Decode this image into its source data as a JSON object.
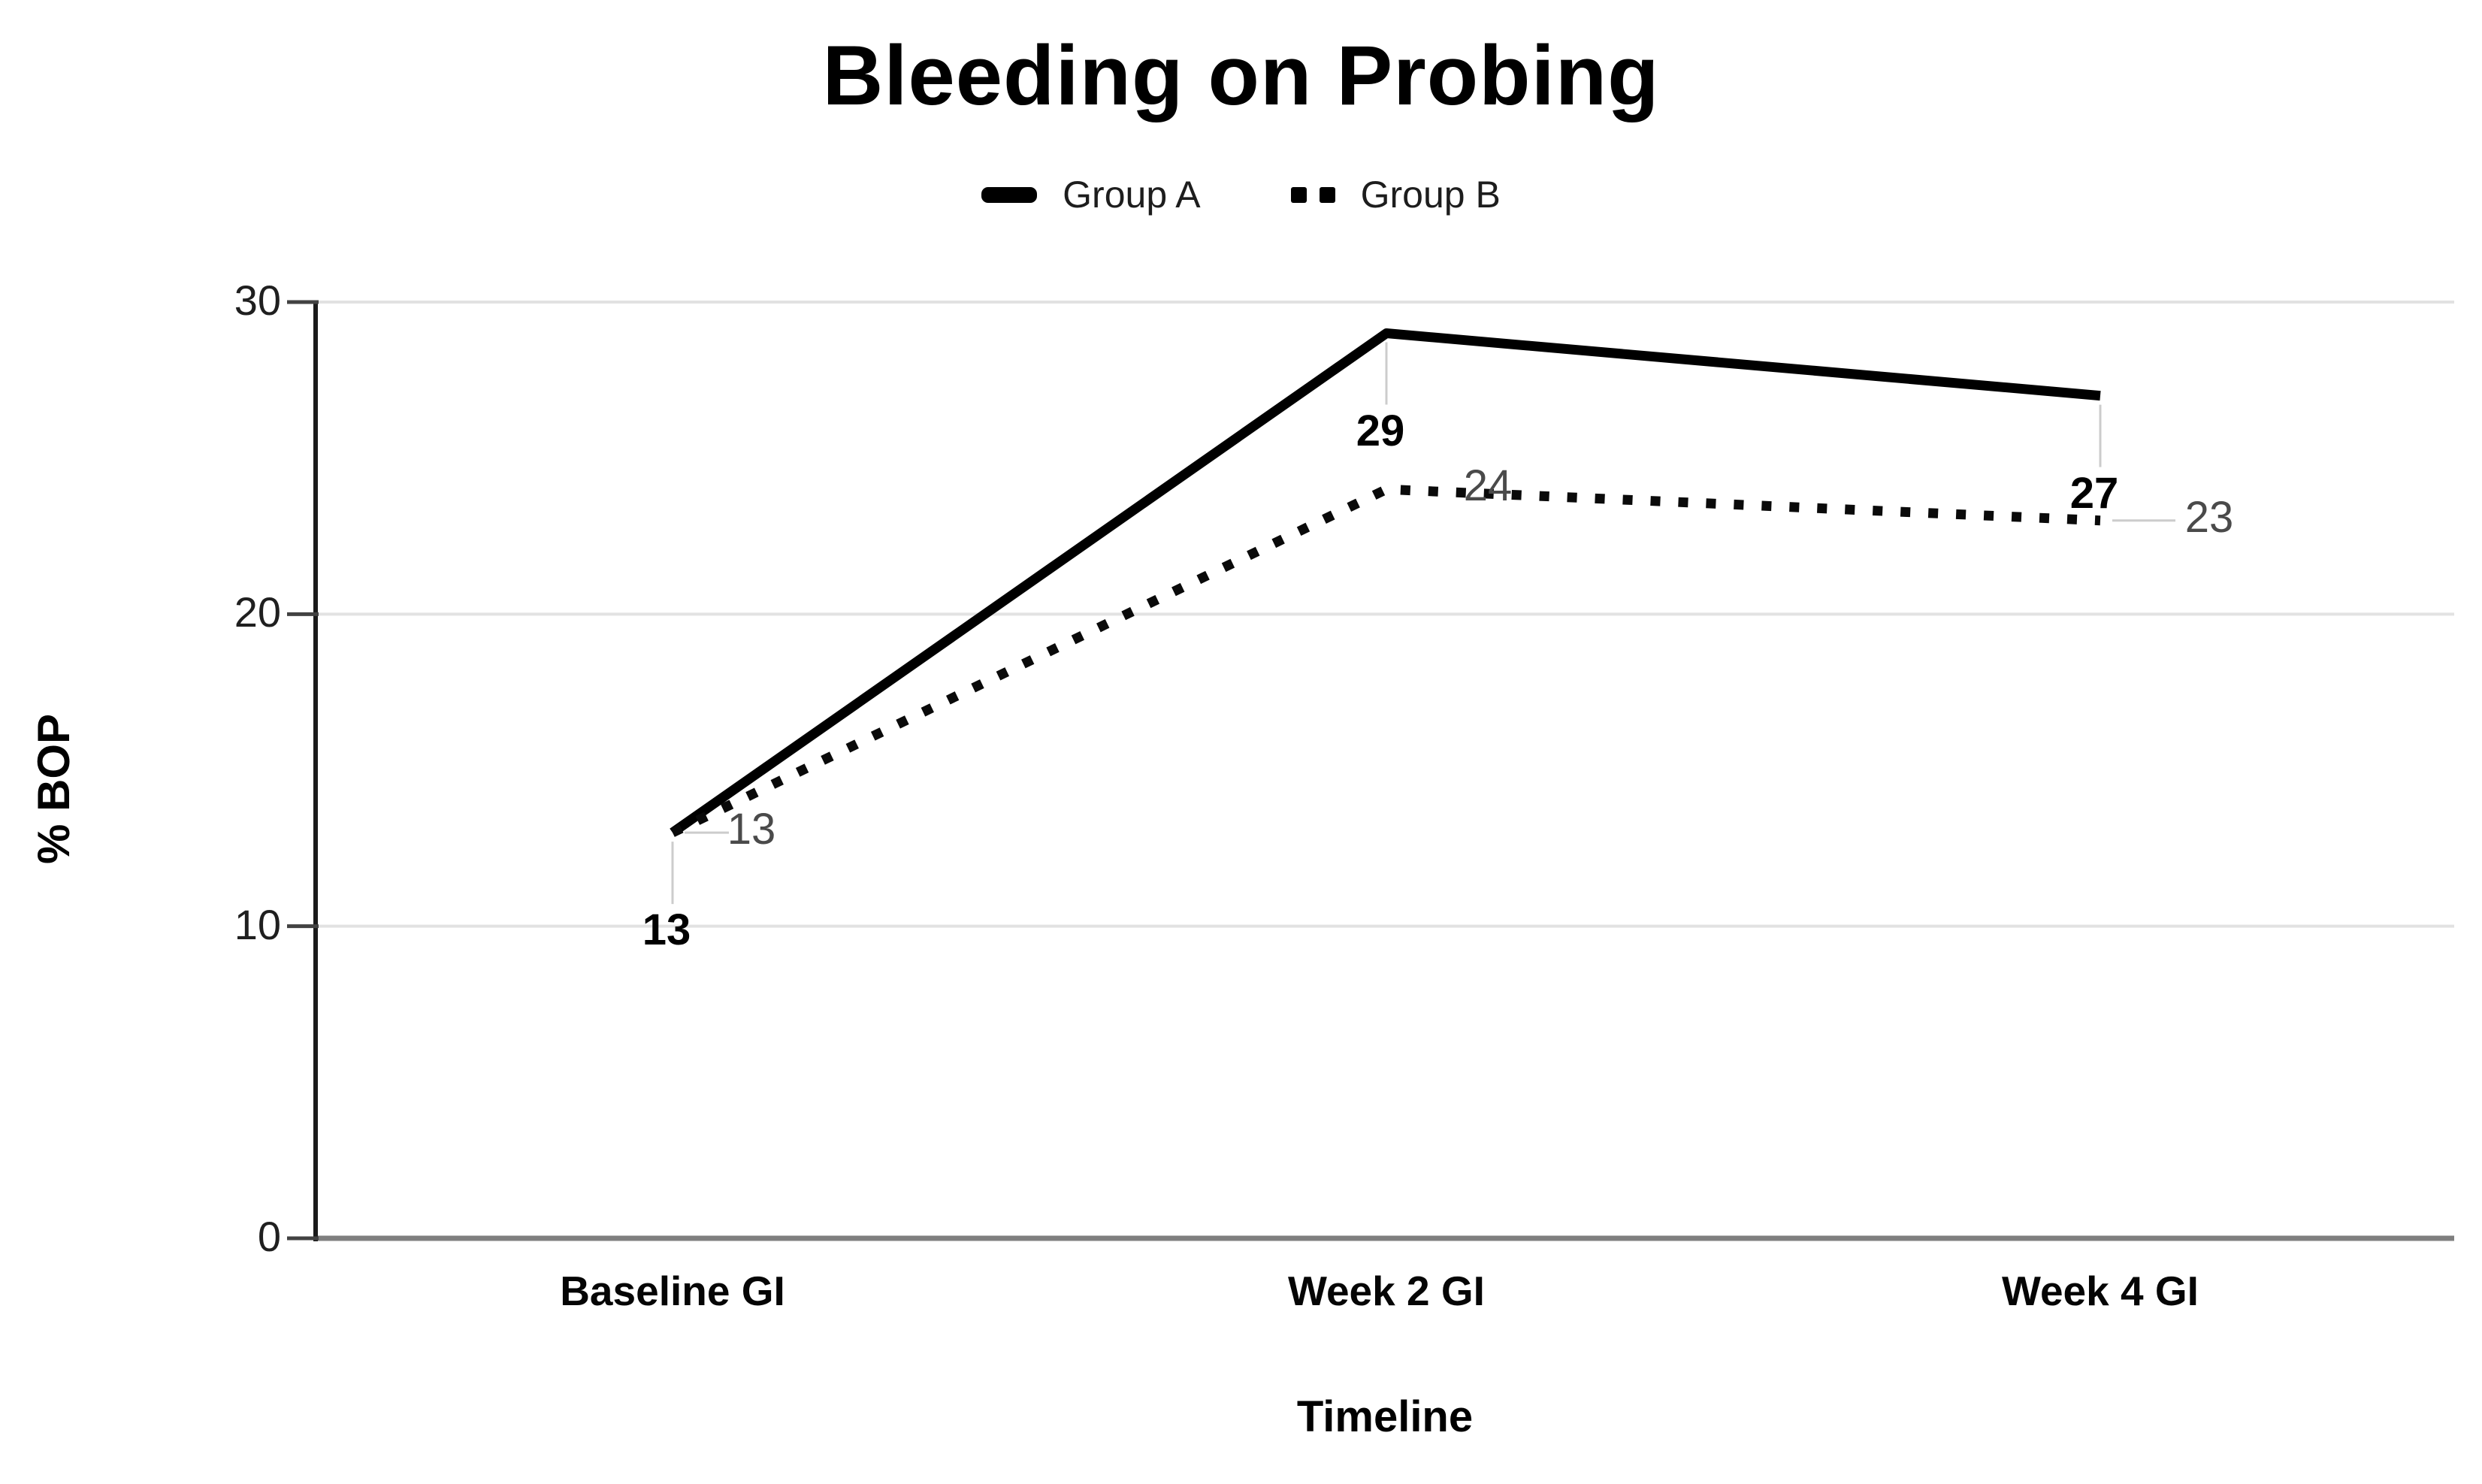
{
  "chart_data": {
    "type": "line",
    "title": "Bleeding on Probing",
    "xlabel": "Timeline",
    "ylabel": "% BOP",
    "categories": [
      "Baseline GI",
      "Week 2 GI",
      "Week 4 GI"
    ],
    "series": [
      {
        "name": "Group A",
        "values": [
          13,
          29,
          27
        ],
        "line_style": "solid",
        "color": "#000000"
      },
      {
        "name": "Group B",
        "values": [
          13,
          24,
          23
        ],
        "line_style": "dotted",
        "color": "#0a0a0a"
      }
    ],
    "ylim": [
      0,
      30
    ],
    "yticks": [
      0,
      10,
      20,
      30
    ],
    "grid": "horizontal",
    "legend_position": "top",
    "colors": {
      "background": "#ffffff",
      "gridline": "#e2e2e2",
      "zero_axis": "#7f7f7f",
      "y_axis": "#1a1a1a",
      "tick_mark": "#424242",
      "leader_line": "#cccccc",
      "series_a_label": "#000000",
      "series_b_label": "#4a4a4a"
    }
  }
}
